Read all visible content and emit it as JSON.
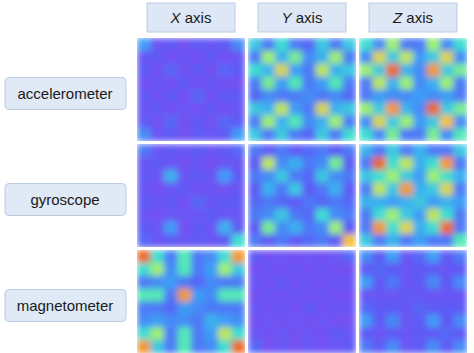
{
  "chart_data": {
    "type": "heatmap",
    "columns": [
      "X axis",
      "Y axis",
      "Z axis"
    ],
    "rows": [
      "accelerometer",
      "gyroscope",
      "magnetometer"
    ],
    "zlim": [
      0,
      1
    ],
    "cells": [
      [
        [
          [
            0.4,
            0.15,
            0.2,
            0.1,
            0.2,
            0.15,
            0.2,
            0.35
          ],
          [
            0.15,
            0.2,
            0.1,
            0.15,
            0.1,
            0.2,
            0.1,
            0.15
          ],
          [
            0.2,
            0.1,
            0.25,
            0.1,
            0.2,
            0.1,
            0.25,
            0.2
          ],
          [
            0.1,
            0.15,
            0.1,
            0.2,
            0.1,
            0.15,
            0.1,
            0.1
          ],
          [
            0.2,
            0.1,
            0.2,
            0.1,
            0.25,
            0.1,
            0.2,
            0.2
          ],
          [
            0.15,
            0.2,
            0.1,
            0.15,
            0.1,
            0.2,
            0.1,
            0.15
          ],
          [
            0.2,
            0.1,
            0.25,
            0.1,
            0.2,
            0.1,
            0.25,
            0.2
          ],
          [
            0.35,
            0.15,
            0.2,
            0.1,
            0.2,
            0.15,
            0.2,
            0.4
          ]
        ],
        [
          [
            0.5,
            0.3,
            0.55,
            0.3,
            0.25,
            0.5,
            0.3,
            0.5
          ],
          [
            0.3,
            0.7,
            0.45,
            0.65,
            0.35,
            0.45,
            0.7,
            0.3
          ],
          [
            0.55,
            0.45,
            0.8,
            0.4,
            0.3,
            0.75,
            0.45,
            0.5
          ],
          [
            0.3,
            0.65,
            0.4,
            0.6,
            0.3,
            0.4,
            0.6,
            0.3
          ],
          [
            0.25,
            0.35,
            0.3,
            0.3,
            0.35,
            0.3,
            0.35,
            0.25
          ],
          [
            0.5,
            0.45,
            0.75,
            0.4,
            0.3,
            0.8,
            0.45,
            0.5
          ],
          [
            0.3,
            0.7,
            0.45,
            0.6,
            0.35,
            0.45,
            0.7,
            0.3
          ],
          [
            0.5,
            0.3,
            0.5,
            0.3,
            0.25,
            0.5,
            0.3,
            0.55
          ]
        ],
        [
          [
            0.55,
            0.35,
            0.7,
            0.3,
            0.3,
            0.7,
            0.35,
            0.55
          ],
          [
            0.35,
            0.8,
            0.5,
            0.75,
            0.4,
            0.5,
            0.8,
            0.35
          ],
          [
            0.7,
            0.5,
            0.95,
            0.45,
            0.35,
            0.9,
            0.5,
            0.65
          ],
          [
            0.3,
            0.75,
            0.45,
            0.7,
            0.35,
            0.45,
            0.7,
            0.3
          ],
          [
            0.3,
            0.4,
            0.35,
            0.35,
            0.4,
            0.35,
            0.4,
            0.3
          ],
          [
            0.7,
            0.5,
            0.9,
            0.45,
            0.35,
            0.95,
            0.5,
            0.65
          ],
          [
            0.35,
            0.8,
            0.5,
            0.7,
            0.4,
            0.5,
            0.85,
            0.35
          ],
          [
            0.55,
            0.35,
            0.65,
            0.3,
            0.3,
            0.65,
            0.35,
            0.6
          ]
        ]
      ],
      [
        [
          [
            0.3,
            0.15,
            0.2,
            0.15,
            0.2,
            0.15,
            0.2,
            0.25
          ],
          [
            0.15,
            0.2,
            0.15,
            0.1,
            0.15,
            0.1,
            0.15,
            0.15
          ],
          [
            0.2,
            0.15,
            0.45,
            0.15,
            0.2,
            0.15,
            0.4,
            0.2
          ],
          [
            0.15,
            0.1,
            0.15,
            0.2,
            0.1,
            0.15,
            0.1,
            0.15
          ],
          [
            0.2,
            0.15,
            0.2,
            0.1,
            0.25,
            0.15,
            0.2,
            0.2
          ],
          [
            0.15,
            0.1,
            0.15,
            0.15,
            0.15,
            0.2,
            0.15,
            0.15
          ],
          [
            0.2,
            0.15,
            0.4,
            0.1,
            0.2,
            0.15,
            0.45,
            0.2
          ],
          [
            0.25,
            0.15,
            0.2,
            0.15,
            0.2,
            0.15,
            0.2,
            0.55
          ]
        ],
        [
          [
            0.3,
            0.2,
            0.3,
            0.2,
            0.25,
            0.3,
            0.2,
            0.3
          ],
          [
            0.2,
            0.75,
            0.35,
            0.45,
            0.3,
            0.35,
            0.65,
            0.2
          ],
          [
            0.3,
            0.35,
            0.5,
            0.3,
            0.25,
            0.5,
            0.35,
            0.3
          ],
          [
            0.2,
            0.45,
            0.3,
            0.5,
            0.2,
            0.3,
            0.45,
            0.2
          ],
          [
            0.25,
            0.3,
            0.25,
            0.2,
            0.3,
            0.25,
            0.3,
            0.25
          ],
          [
            0.3,
            0.35,
            0.5,
            0.3,
            0.25,
            0.55,
            0.35,
            0.3
          ],
          [
            0.2,
            0.65,
            0.35,
            0.45,
            0.3,
            0.35,
            0.7,
            0.2
          ],
          [
            0.3,
            0.2,
            0.3,
            0.2,
            0.25,
            0.3,
            0.2,
            0.85
          ]
        ],
        [
          [
            0.45,
            0.3,
            0.5,
            0.3,
            0.45,
            0.3,
            0.3,
            0.5
          ],
          [
            0.3,
            0.95,
            0.55,
            0.75,
            0.45,
            0.55,
            0.9,
            0.3
          ],
          [
            0.5,
            0.55,
            0.7,
            0.5,
            0.4,
            0.7,
            0.55,
            0.45
          ],
          [
            0.3,
            0.75,
            0.5,
            0.9,
            0.45,
            0.5,
            0.8,
            0.3
          ],
          [
            0.45,
            0.45,
            0.4,
            0.45,
            0.5,
            0.4,
            0.45,
            0.4
          ],
          [
            0.3,
            0.55,
            0.7,
            0.5,
            0.4,
            0.75,
            0.55,
            0.3
          ],
          [
            0.3,
            0.9,
            0.55,
            0.8,
            0.45,
            0.55,
            0.95,
            0.3
          ],
          [
            0.5,
            0.3,
            0.45,
            0.3,
            0.4,
            0.3,
            0.3,
            0.6
          ]
        ]
      ],
      [
        [
          [
            0.95,
            0.55,
            0.3,
            0.6,
            0.3,
            0.35,
            0.55,
            0.9
          ],
          [
            0.55,
            0.7,
            0.35,
            0.6,
            0.3,
            0.4,
            0.7,
            0.5
          ],
          [
            0.3,
            0.35,
            0.4,
            0.3,
            0.25,
            0.35,
            0.3,
            0.3
          ],
          [
            0.6,
            0.6,
            0.3,
            0.9,
            0.4,
            0.35,
            0.6,
            0.6
          ],
          [
            0.3,
            0.3,
            0.25,
            0.4,
            0.35,
            0.3,
            0.3,
            0.3
          ],
          [
            0.35,
            0.4,
            0.35,
            0.35,
            0.3,
            0.45,
            0.4,
            0.35
          ],
          [
            0.55,
            0.7,
            0.3,
            0.6,
            0.3,
            0.4,
            0.75,
            0.55
          ],
          [
            0.9,
            0.5,
            0.3,
            0.6,
            0.3,
            0.35,
            0.55,
            0.95
          ]
        ],
        [
          [
            0.2,
            0.1,
            0.15,
            0.1,
            0.15,
            0.1,
            0.15,
            0.25
          ],
          [
            0.1,
            0.15,
            0.1,
            0.15,
            0.1,
            0.15,
            0.1,
            0.1
          ],
          [
            0.15,
            0.1,
            0.2,
            0.1,
            0.15,
            0.1,
            0.15,
            0.15
          ],
          [
            0.1,
            0.15,
            0.1,
            0.15,
            0.1,
            0.15,
            0.1,
            0.1
          ],
          [
            0.15,
            0.1,
            0.15,
            0.1,
            0.2,
            0.1,
            0.15,
            0.15
          ],
          [
            0.1,
            0.15,
            0.1,
            0.15,
            0.1,
            0.15,
            0.1,
            0.1
          ],
          [
            0.15,
            0.1,
            0.15,
            0.1,
            0.15,
            0.1,
            0.2,
            0.15
          ],
          [
            0.25,
            0.1,
            0.15,
            0.1,
            0.15,
            0.1,
            0.15,
            0.2
          ]
        ],
        [
          [
            0.35,
            0.2,
            0.4,
            0.15,
            0.25,
            0.4,
            0.2,
            0.3
          ],
          [
            0.2,
            0.25,
            0.2,
            0.15,
            0.2,
            0.2,
            0.15,
            0.2
          ],
          [
            0.4,
            0.2,
            0.3,
            0.15,
            0.2,
            0.35,
            0.2,
            0.35
          ],
          [
            0.15,
            0.15,
            0.15,
            0.2,
            0.15,
            0.15,
            0.15,
            0.15
          ],
          [
            0.25,
            0.2,
            0.2,
            0.15,
            0.25,
            0.2,
            0.2,
            0.2
          ],
          [
            0.4,
            0.2,
            0.35,
            0.15,
            0.2,
            0.4,
            0.2,
            0.35
          ],
          [
            0.2,
            0.15,
            0.2,
            0.15,
            0.2,
            0.2,
            0.25,
            0.2
          ],
          [
            0.3,
            0.2,
            0.35,
            0.15,
            0.2,
            0.35,
            0.2,
            0.35
          ]
        ]
      ]
    ]
  }
}
